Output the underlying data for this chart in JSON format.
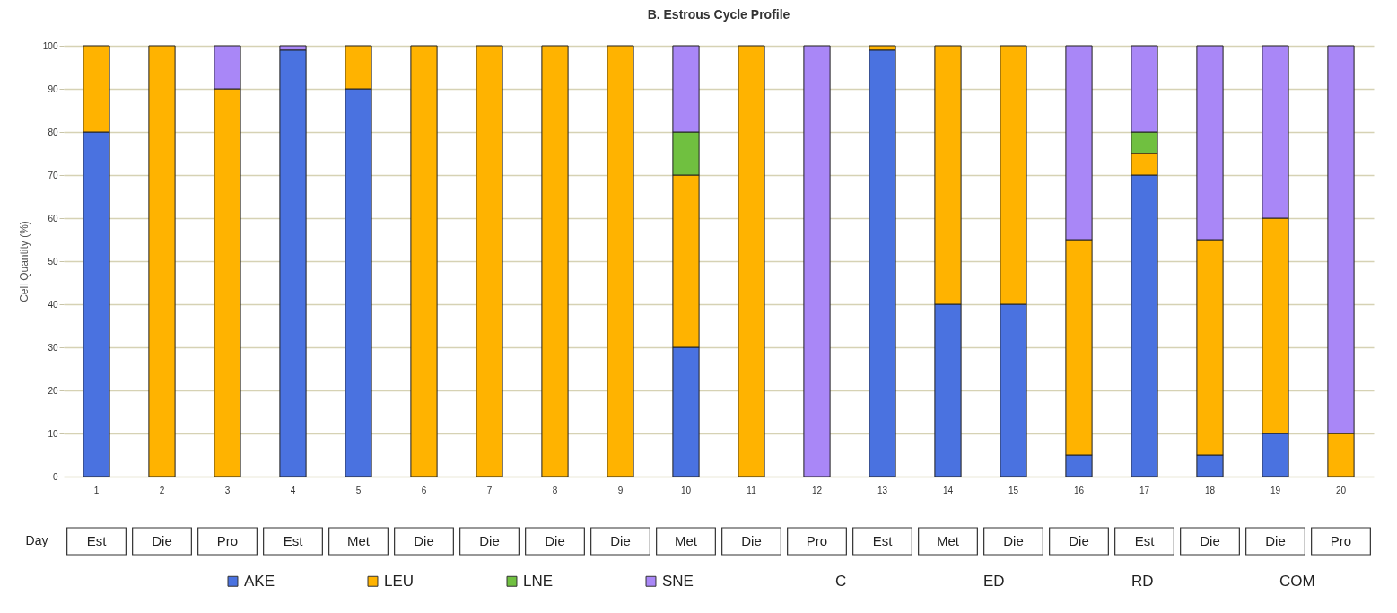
{
  "chart_data": {
    "type": "bar",
    "title": "B. Estrous Cycle Profile",
    "ylabel": "Cell Quantity (%)",
    "stacked": true,
    "categories": [
      "1",
      "2",
      "3",
      "4",
      "5",
      "6",
      "7",
      "8",
      "9",
      "10",
      "11",
      "12",
      "13",
      "14",
      "15",
      "16",
      "17",
      "18",
      "19",
      "20"
    ],
    "series": [
      {
        "name": "AKE",
        "color": "#4a72e0",
        "values": [
          80,
          null,
          null,
          99,
          90,
          null,
          null,
          null,
          null,
          30,
          null,
          null,
          99,
          40,
          40,
          5,
          70,
          5,
          10,
          null
        ]
      },
      {
        "name": "LEU",
        "color": "#ffb300",
        "values": [
          20,
          100,
          90,
          null,
          10,
          100,
          100,
          100,
          100,
          40,
          100,
          null,
          1,
          60,
          60,
          50,
          5,
          50,
          50,
          10
        ]
      },
      {
        "name": "LNE",
        "color": "#70c040",
        "values": [
          null,
          null,
          null,
          null,
          null,
          null,
          null,
          null,
          null,
          10,
          null,
          null,
          null,
          null,
          null,
          null,
          5,
          null,
          null,
          null
        ]
      },
      {
        "name": "SNE",
        "color": "#a987f7",
        "values": [
          null,
          null,
          10,
          1,
          null,
          null,
          null,
          null,
          null,
          20,
          null,
          100,
          null,
          null,
          null,
          45,
          20,
          45,
          40,
          90
        ]
      }
    ],
    "ylim": [
      0,
      100
    ],
    "yticks": [
      0,
      10,
      20,
      30,
      40,
      50,
      60,
      70,
      80,
      90,
      100
    ],
    "grid": "y",
    "legend": "bottom",
    "annotations": [
      "Day",
      "Est",
      "Die",
      "Pro",
      "Est",
      "Met",
      "Die",
      "Die",
      "Die",
      "Die",
      "Met",
      "Die",
      "Pro",
      "Est",
      "Met",
      "Die",
      "Die",
      "Est",
      "Die",
      "Die",
      "Pro",
      "C",
      "ED",
      "RD",
      "COM"
    ]
  }
}
